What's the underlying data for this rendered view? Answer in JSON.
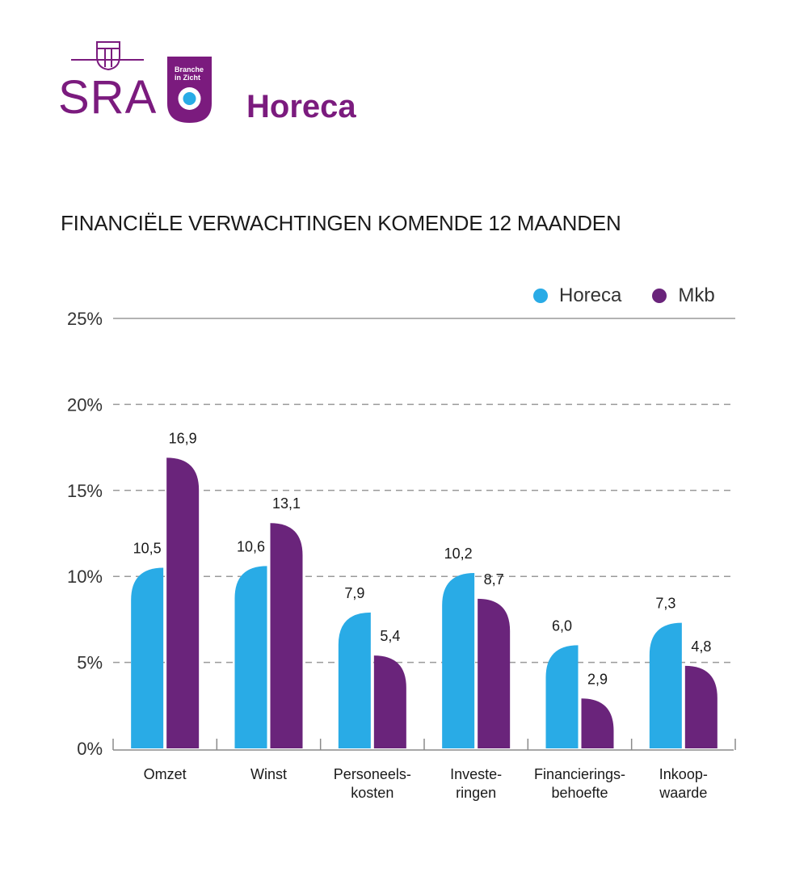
{
  "header": {
    "logo_text": "SRA",
    "badge_text": "Branche in Zicht",
    "title": "Horeca"
  },
  "colors": {
    "brand": "#7b1b7e",
    "horeca": "#29abe6",
    "mkb": "#6a247b",
    "badge_dot": "#29abe6"
  },
  "chart_data": {
    "type": "bar",
    "title": "FINANCIËLE VERWACHTINGEN KOMENDE 12 MAANDEN",
    "categories": [
      [
        "Omzet"
      ],
      [
        "Winst"
      ],
      [
        "Personeels-",
        "kosten"
      ],
      [
        "Investe-",
        "ringen"
      ],
      [
        "Financierings-",
        "behoefte"
      ],
      [
        "Inkoop-",
        "waarde"
      ]
    ],
    "series": [
      {
        "name": "Horeca",
        "values": [
          10.5,
          10.6,
          7.9,
          10.2,
          6.0,
          7.3
        ],
        "labels": [
          "10,5",
          "10,6",
          "7,9",
          "10,2",
          "6,0",
          "7,3"
        ]
      },
      {
        "name": "Mkb",
        "values": [
          16.9,
          13.1,
          5.4,
          8.7,
          2.9,
          4.8
        ],
        "labels": [
          "16,9",
          "13,1",
          "5,4",
          "8,7",
          "2,9",
          "4,8"
        ]
      }
    ],
    "yticks": [
      "0%",
      "5%",
      "10%",
      "15%",
      "20%",
      "25%"
    ],
    "ylim": [
      0,
      25
    ],
    "grid": true,
    "legend_position": "top-right"
  }
}
